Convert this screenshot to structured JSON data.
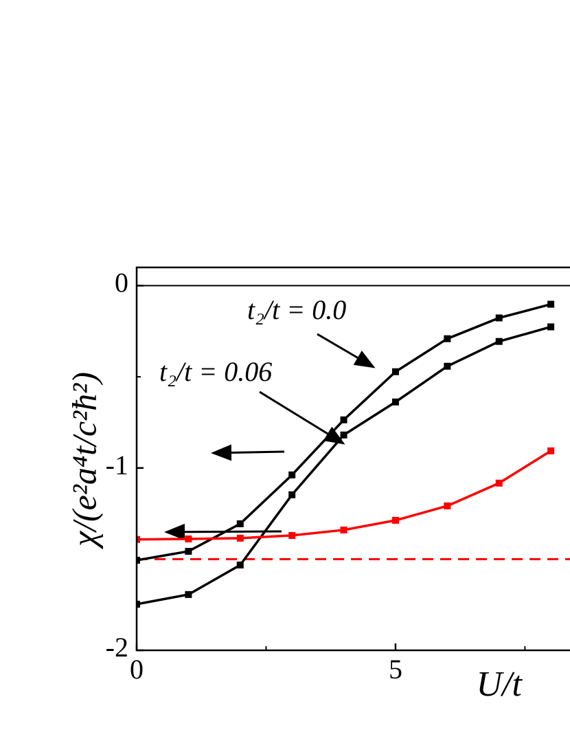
{
  "chart_data": {
    "type": "line",
    "xlabel": "U/t",
    "ylabel": "χ/(e²a⁴t/c²ħ²)",
    "x": [
      0,
      1,
      2,
      3,
      4,
      5,
      6,
      7,
      8
    ],
    "series": [
      {
        "color": "#000000",
        "values": [
          -1.506,
          -1.457,
          -1.306,
          -1.038,
          -0.736,
          -0.472,
          -0.291,
          -0.177,
          -0.102
        ]
      },
      {
        "color": "#000000",
        "values": [
          -1.747,
          -1.694,
          -1.532,
          -1.147,
          -0.819,
          -0.638,
          -0.442,
          -0.306,
          -0.226
        ]
      },
      {
        "color": "#ff0000",
        "values": [
          -1.392,
          -1.389,
          -1.385,
          -1.37,
          -1.34,
          -1.287,
          -1.208,
          -1.083,
          -0.906
        ]
      }
    ],
    "reference_line": {
      "value": -1.5,
      "color": "#ff0000",
      "dashed": true
    },
    "zero_line": true,
    "annotations": [
      "t₂/t = 0.0",
      "t₂/t = 0.06"
    ],
    "xlim": [
      0,
      8.37
    ],
    "xticks": [
      0,
      5
    ],
    "xminor": [
      2.5,
      7.5
    ],
    "ylim": [
      -2,
      0.1
    ],
    "yticks": [
      0,
      -1,
      -2
    ],
    "yminor": [
      -0.5,
      -1.5
    ]
  }
}
